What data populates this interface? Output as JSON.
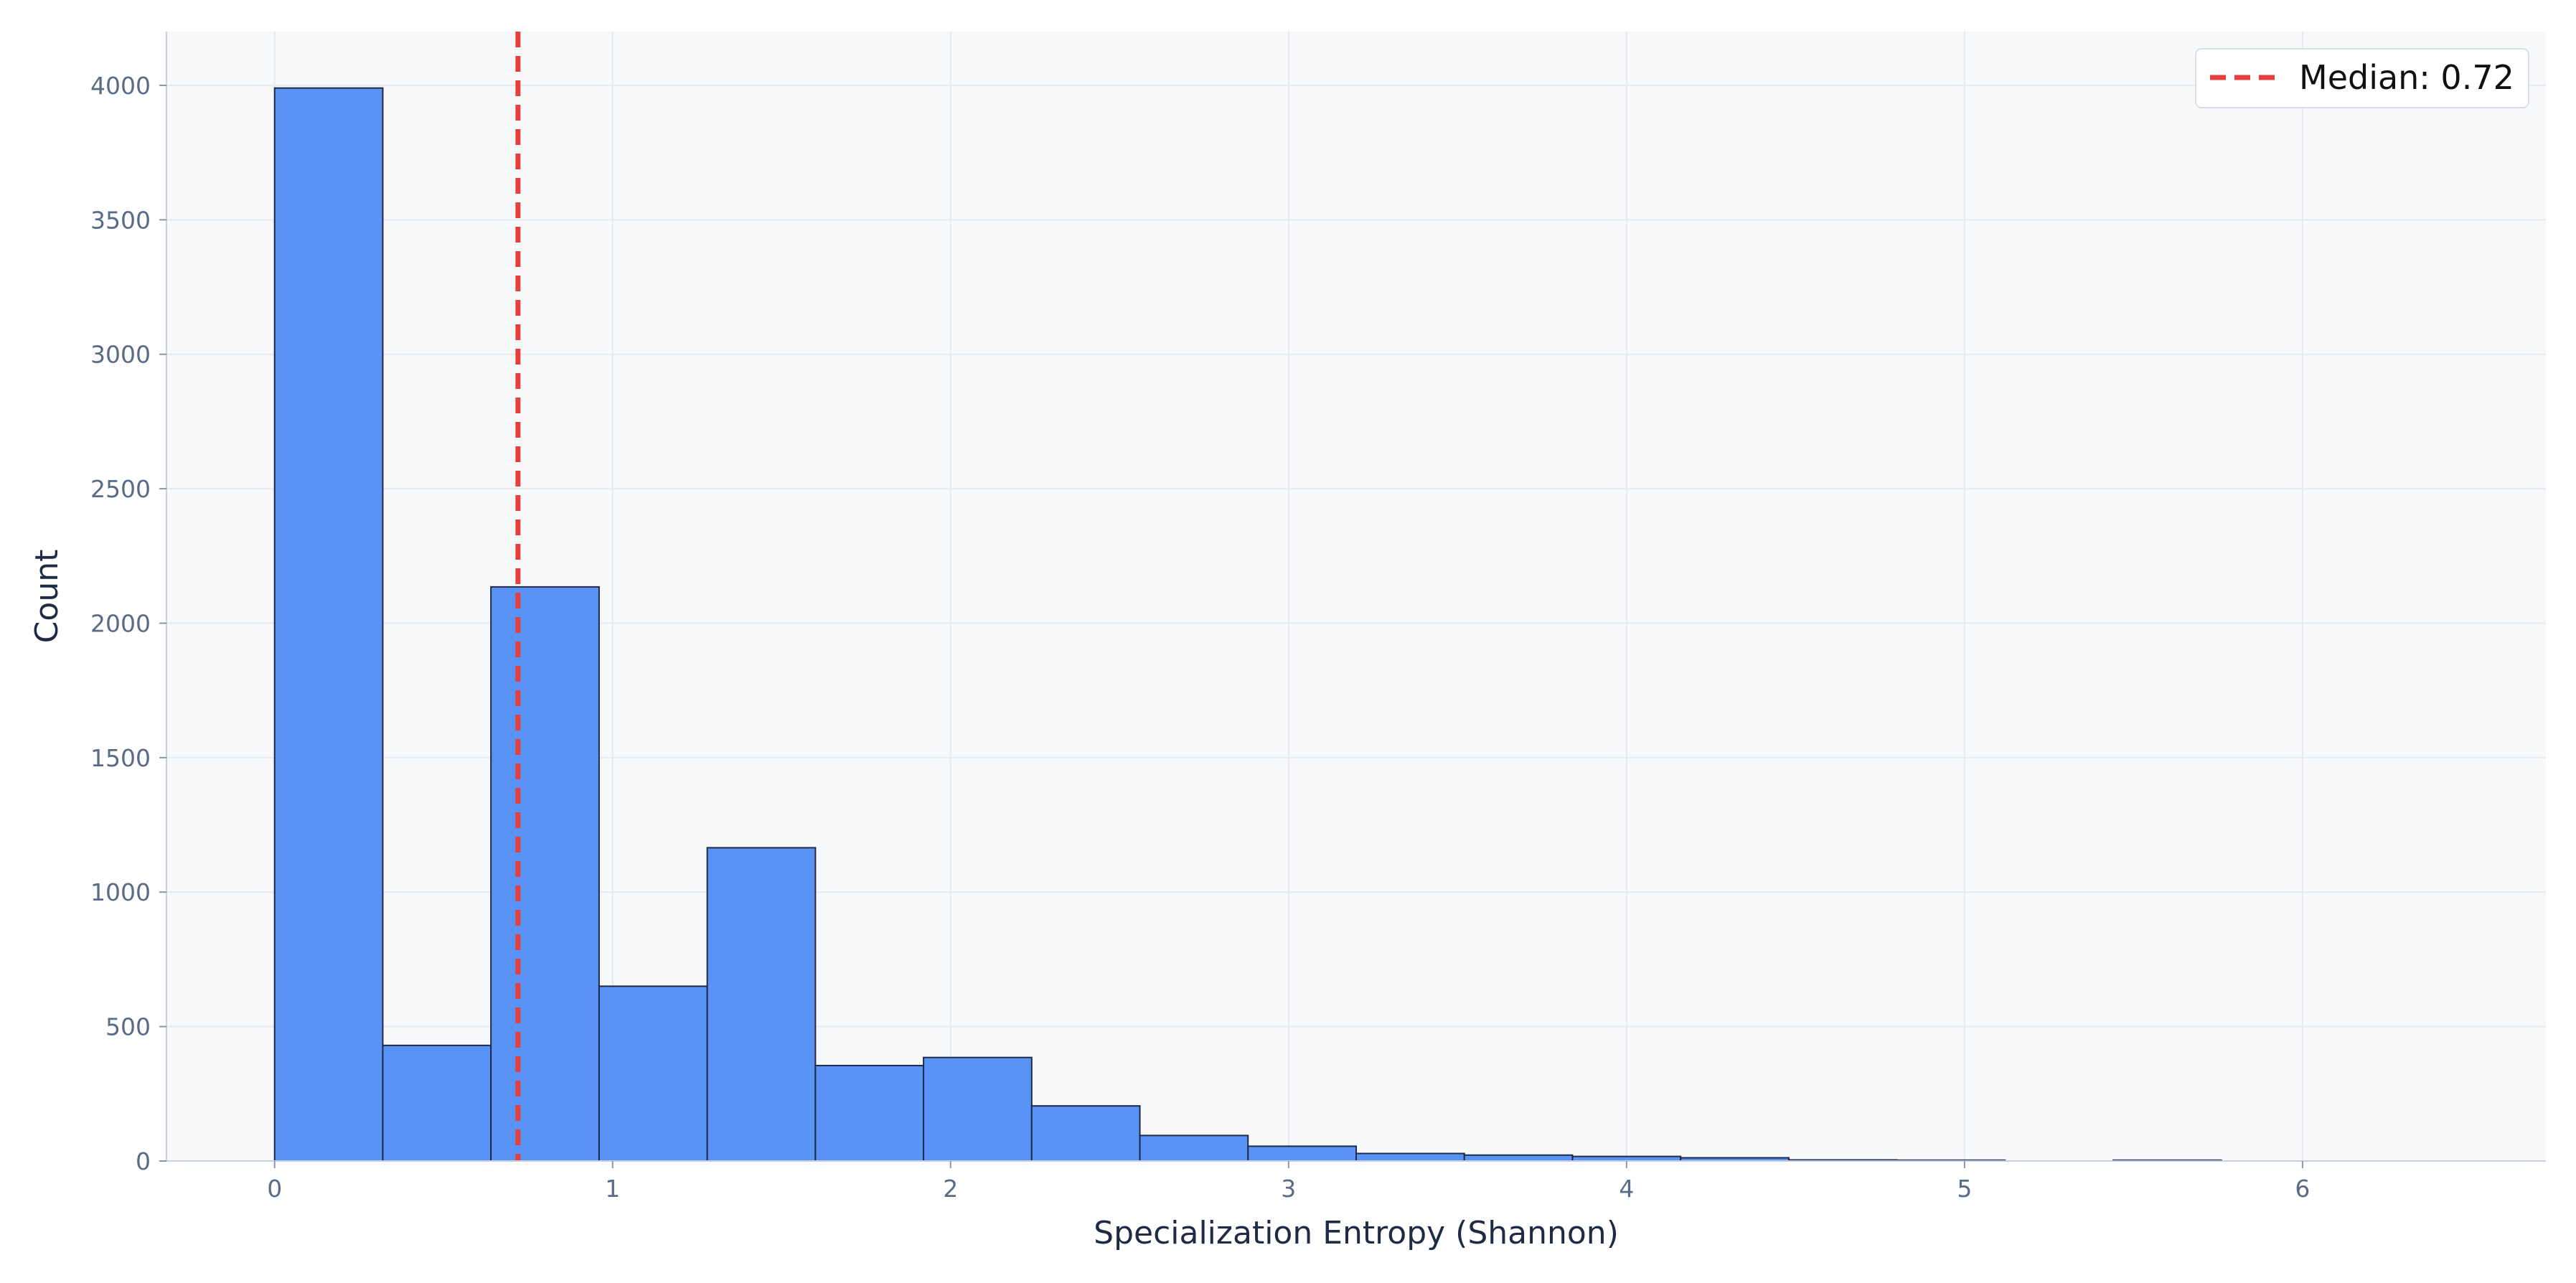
{
  "chart_data": {
    "type": "bar",
    "title": "",
    "xlabel": "Specialization Entropy (Shannon)",
    "ylabel": "Count",
    "xlim": [
      -0.32,
      6.72
    ],
    "ylim": [
      0,
      4200
    ],
    "xticks": [
      0,
      1,
      2,
      3,
      4,
      5,
      6
    ],
    "yticks": [
      0,
      500,
      1000,
      1500,
      2000,
      2500,
      3000,
      3500,
      4000
    ],
    "grid": true,
    "legend": {
      "placement": "top-right",
      "entries": [
        {
          "label": "Median: 0.72",
          "style": "dashed-line",
          "color": "#e53e3e"
        }
      ]
    },
    "bar_color": "#5893f5",
    "bar_edge_color": "#1f2a44",
    "bins": [
      {
        "start": 0.0,
        "end": 0.32,
        "count": 3990
      },
      {
        "start": 0.32,
        "end": 0.64,
        "count": 430
      },
      {
        "start": 0.64,
        "end": 0.96,
        "count": 2135
      },
      {
        "start": 0.96,
        "end": 1.28,
        "count": 650
      },
      {
        "start": 1.28,
        "end": 1.6,
        "count": 1165
      },
      {
        "start": 1.6,
        "end": 1.92,
        "count": 355
      },
      {
        "start": 1.92,
        "end": 2.24,
        "count": 385
      },
      {
        "start": 2.24,
        "end": 2.56,
        "count": 205
      },
      {
        "start": 2.56,
        "end": 2.88,
        "count": 95
      },
      {
        "start": 2.88,
        "end": 3.2,
        "count": 55
      },
      {
        "start": 3.2,
        "end": 3.52,
        "count": 28
      },
      {
        "start": 3.52,
        "end": 3.84,
        "count": 22
      },
      {
        "start": 3.84,
        "end": 4.16,
        "count": 17
      },
      {
        "start": 4.16,
        "end": 4.48,
        "count": 12
      },
      {
        "start": 4.48,
        "end": 4.8,
        "count": 4
      },
      {
        "start": 4.8,
        "end": 5.12,
        "count": 3
      },
      {
        "start": 5.12,
        "end": 5.44,
        "count": 0
      },
      {
        "start": 5.44,
        "end": 5.76,
        "count": 3
      },
      {
        "start": 5.76,
        "end": 6.08,
        "count": 0
      },
      {
        "start": 6.08,
        "end": 6.4,
        "count": 0
      }
    ],
    "median": {
      "value": 0.72,
      "label": "Median: 0.72",
      "color": "#e53e3e"
    }
  }
}
